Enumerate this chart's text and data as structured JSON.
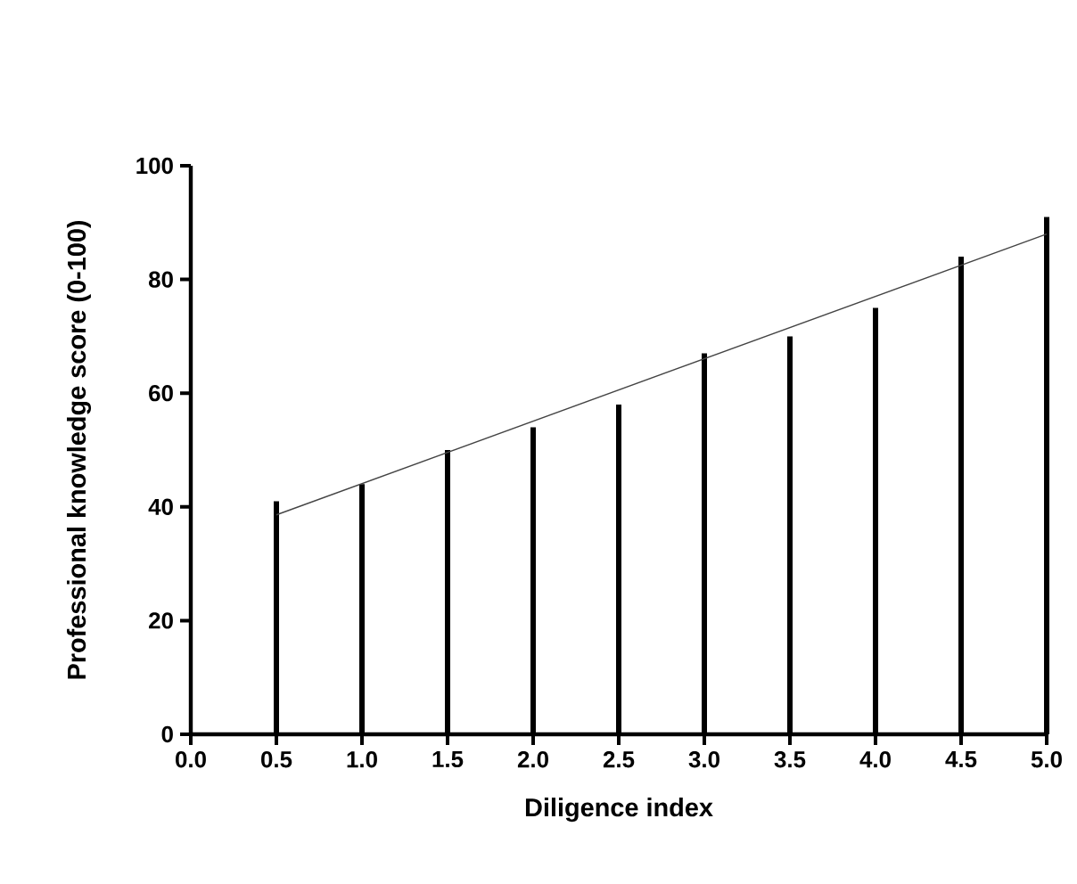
{
  "chart_data": {
    "type": "bar",
    "xlabel": "Diligence index",
    "ylabel": "Professional knowledge score (0-100)",
    "x": [
      0.5,
      1.0,
      1.5,
      2.0,
      2.5,
      3.0,
      3.5,
      4.0,
      4.5,
      5.0
    ],
    "series": [
      {
        "color": "#000000",
        "values": [
          41,
          44,
          50,
          54,
          58,
          67,
          70,
          75,
          84,
          91
        ]
      },
      {
        "type": "line",
        "color": "#444444",
        "x": [
          0.5,
          5.0
        ],
        "values": [
          38.6,
          88.0
        ]
      }
    ],
    "xlim": [
      0,
      5
    ],
    "xticks": [
      {
        "value": 0,
        "label": "0.0"
      },
      {
        "value": 0.5,
        "label": "0.5"
      },
      {
        "value": 1,
        "label": "1.0"
      },
      {
        "value": 1.5,
        "label": "1.5"
      },
      {
        "value": 2,
        "label": "2.0"
      },
      {
        "value": 2.5,
        "label": "2.5"
      },
      {
        "value": 3,
        "label": "3.0"
      },
      {
        "value": 3.5,
        "label": "3.5"
      },
      {
        "value": 4,
        "label": "4.0"
      },
      {
        "value": 4.5,
        "label": "4.5"
      },
      {
        "value": 5,
        "label": "5.0"
      }
    ],
    "ylim": [
      0,
      100
    ],
    "yticks": [
      0,
      20,
      40,
      60,
      80,
      100
    ],
    "grid": false,
    "marker": "none",
    "line_style": "solid"
  }
}
